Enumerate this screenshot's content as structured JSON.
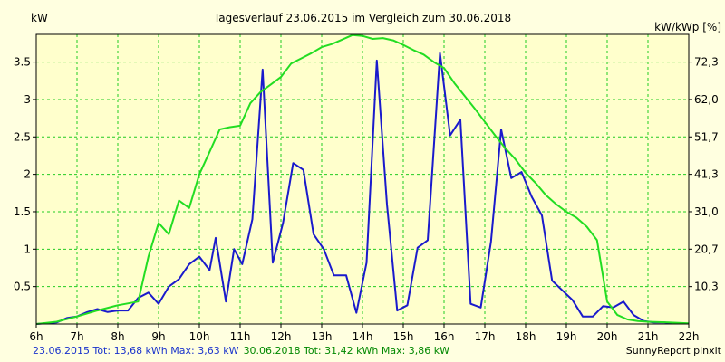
{
  "chart_data": {
    "type": "line",
    "title": "Tagesverlauf 23.06.2015 im Vergleich zum 30.06.2018",
    "ylabel_left": "kW",
    "ylabel_right": "kW/kWp [%]",
    "xlim": [
      6,
      22
    ],
    "ylim": [
      0,
      3.87
    ],
    "x_ticks": [
      {
        "x": 6,
        "label": "6h"
      },
      {
        "x": 7,
        "label": "7h"
      },
      {
        "x": 8,
        "label": "8h"
      },
      {
        "x": 9,
        "label": "9h"
      },
      {
        "x": 10,
        "label": "10h"
      },
      {
        "x": 11,
        "label": "11h"
      },
      {
        "x": 12,
        "label": "12h"
      },
      {
        "x": 13,
        "label": "13h"
      },
      {
        "x": 14,
        "label": "14h"
      },
      {
        "x": 15,
        "label": "15h"
      },
      {
        "x": 16,
        "label": "16h"
      },
      {
        "x": 17,
        "label": "17h"
      },
      {
        "x": 18,
        "label": "18h"
      },
      {
        "x": 19,
        "label": "19h"
      },
      {
        "x": 20,
        "label": "20h"
      },
      {
        "x": 21,
        "label": "21h"
      },
      {
        "x": 22,
        "label": "22h"
      }
    ],
    "y_ticks_left": [
      {
        "y": 0.5,
        "label": "0.5"
      },
      {
        "y": 1,
        "label": "1"
      },
      {
        "y": 1.5,
        "label": "1.5"
      },
      {
        "y": 2,
        "label": "2"
      },
      {
        "y": 2.5,
        "label": "2.5"
      },
      {
        "y": 3,
        "label": "3"
      },
      {
        "y": 3.5,
        "label": "3.5"
      }
    ],
    "y_ticks_right": [
      {
        "y": 0.5,
        "label": "10,3"
      },
      {
        "y": 1,
        "label": "20,7"
      },
      {
        "y": 1.5,
        "label": "31,0"
      },
      {
        "y": 2,
        "label": "41,3"
      },
      {
        "y": 2.5,
        "label": "51,7"
      },
      {
        "y": 3,
        "label": "62,0"
      },
      {
        "y": 3.5,
        "label": "72,3"
      }
    ],
    "grid": true,
    "series": [
      {
        "name": "23.06.2015",
        "color": "#1a1acc",
        "points": [
          [
            6.0,
            0.0
          ],
          [
            6.5,
            0.02
          ],
          [
            6.75,
            0.08
          ],
          [
            7.0,
            0.1
          ],
          [
            7.25,
            0.16
          ],
          [
            7.5,
            0.2
          ],
          [
            7.75,
            0.16
          ],
          [
            8.0,
            0.18
          ],
          [
            8.25,
            0.18
          ],
          [
            8.5,
            0.35
          ],
          [
            8.75,
            0.42
          ],
          [
            9.0,
            0.27
          ],
          [
            9.25,
            0.5
          ],
          [
            9.5,
            0.6
          ],
          [
            9.75,
            0.8
          ],
          [
            10.0,
            0.9
          ],
          [
            10.25,
            0.72
          ],
          [
            10.4,
            1.15
          ],
          [
            10.65,
            0.3
          ],
          [
            10.85,
            1.0
          ],
          [
            11.05,
            0.8
          ],
          [
            11.3,
            1.4
          ],
          [
            11.55,
            3.4
          ],
          [
            11.8,
            0.82
          ],
          [
            12.05,
            1.35
          ],
          [
            12.3,
            2.15
          ],
          [
            12.55,
            2.06
          ],
          [
            12.8,
            1.2
          ],
          [
            13.05,
            1.0
          ],
          [
            13.3,
            0.65
          ],
          [
            13.6,
            0.65
          ],
          [
            13.85,
            0.15
          ],
          [
            14.1,
            0.82
          ],
          [
            14.35,
            3.52
          ],
          [
            14.6,
            1.6
          ],
          [
            14.85,
            0.18
          ],
          [
            15.1,
            0.25
          ],
          [
            15.35,
            1.02
          ],
          [
            15.6,
            1.12
          ],
          [
            15.9,
            3.62
          ],
          [
            16.15,
            2.52
          ],
          [
            16.4,
            2.73
          ],
          [
            16.65,
            0.27
          ],
          [
            16.9,
            0.22
          ],
          [
            17.15,
            1.1
          ],
          [
            17.4,
            2.6
          ],
          [
            17.65,
            1.95
          ],
          [
            17.9,
            2.03
          ],
          [
            18.15,
            1.7
          ],
          [
            18.4,
            1.45
          ],
          [
            18.65,
            0.58
          ],
          [
            18.9,
            0.45
          ],
          [
            19.15,
            0.32
          ],
          [
            19.4,
            0.1
          ],
          [
            19.65,
            0.1
          ],
          [
            19.9,
            0.24
          ],
          [
            20.15,
            0.22
          ],
          [
            20.4,
            0.3
          ],
          [
            20.65,
            0.12
          ],
          [
            20.9,
            0.04
          ],
          [
            21.15,
            0.02
          ],
          [
            21.4,
            0.02
          ],
          [
            21.6,
            0.01
          ]
        ]
      },
      {
        "name": "30.06.2018",
        "color": "#22dd22",
        "points": [
          [
            6.0,
            0.0
          ],
          [
            6.5,
            0.03
          ],
          [
            7.0,
            0.1
          ],
          [
            7.5,
            0.18
          ],
          [
            8.0,
            0.25
          ],
          [
            8.5,
            0.3
          ],
          [
            8.75,
            0.9
          ],
          [
            9.0,
            1.35
          ],
          [
            9.25,
            1.2
          ],
          [
            9.5,
            1.65
          ],
          [
            9.75,
            1.55
          ],
          [
            10.0,
            2.0
          ],
          [
            10.25,
            2.3
          ],
          [
            10.5,
            2.6
          ],
          [
            10.75,
            2.63
          ],
          [
            11.0,
            2.65
          ],
          [
            11.25,
            2.95
          ],
          [
            11.5,
            3.1
          ],
          [
            11.75,
            3.2
          ],
          [
            12.0,
            3.3
          ],
          [
            12.25,
            3.48
          ],
          [
            12.5,
            3.55
          ],
          [
            12.75,
            3.62
          ],
          [
            13.0,
            3.7
          ],
          [
            13.25,
            3.74
          ],
          [
            13.5,
            3.8
          ],
          [
            13.75,
            3.86
          ],
          [
            14.0,
            3.85
          ],
          [
            14.25,
            3.81
          ],
          [
            14.5,
            3.82
          ],
          [
            14.75,
            3.79
          ],
          [
            15.0,
            3.73
          ],
          [
            15.25,
            3.66
          ],
          [
            15.5,
            3.6
          ],
          [
            15.75,
            3.5
          ],
          [
            16.0,
            3.42
          ],
          [
            16.25,
            3.22
          ],
          [
            16.5,
            3.05
          ],
          [
            16.75,
            2.88
          ],
          [
            17.0,
            2.7
          ],
          [
            17.25,
            2.52
          ],
          [
            17.5,
            2.35
          ],
          [
            17.75,
            2.2
          ],
          [
            18.0,
            2.02
          ],
          [
            18.25,
            1.88
          ],
          [
            18.5,
            1.72
          ],
          [
            18.75,
            1.6
          ],
          [
            19.0,
            1.5
          ],
          [
            19.25,
            1.42
          ],
          [
            19.5,
            1.3
          ],
          [
            19.75,
            1.12
          ],
          [
            20.0,
            0.3
          ],
          [
            20.25,
            0.12
          ],
          [
            20.5,
            0.06
          ],
          [
            20.75,
            0.04
          ],
          [
            21.0,
            0.03
          ],
          [
            21.5,
            0.02
          ],
          [
            22.0,
            0.01
          ]
        ]
      }
    ]
  },
  "footer": {
    "series1_text": "23.06.2015 Tot: 13,68 kWh Max: 3,63 kW",
    "series2_text": "30.06.2018 Tot: 31,42 kWh Max: 3,86 kW",
    "credit": "SunnyReport pinxit"
  },
  "colors": {
    "background": "#ffffe0",
    "plot_background": "#ffffcc",
    "grid": "#22cc22",
    "series1": "#1a1acc",
    "series2": "#22dd22"
  }
}
